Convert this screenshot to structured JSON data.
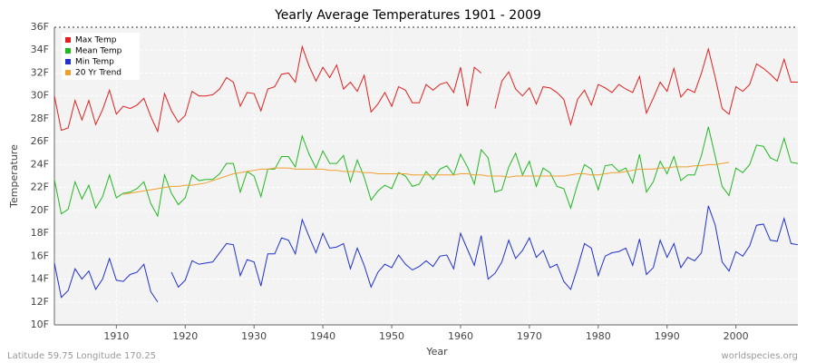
{
  "chart_data": {
    "type": "line",
    "title": "Yearly Average Temperatures 1901 - 2009",
    "x_label": "Year",
    "y_label": "Temperature",
    "footer_left": "Latitude 59.75 Longitude 170.25",
    "footer_right": "worldspecies.org",
    "legend": "top-left",
    "grid": true,
    "x": [
      1901,
      1902,
      1903,
      1904,
      1905,
      1906,
      1907,
      1908,
      1909,
      1910,
      1911,
      1912,
      1913,
      1914,
      1915,
      1916,
      1917,
      1918,
      1919,
      1920,
      1921,
      1922,
      1923,
      1924,
      1925,
      1926,
      1927,
      1928,
      1929,
      1930,
      1931,
      1932,
      1933,
      1934,
      1935,
      1936,
      1937,
      1938,
      1939,
      1940,
      1941,
      1942,
      1943,
      1944,
      1945,
      1946,
      1947,
      1948,
      1949,
      1950,
      1951,
      1952,
      1953,
      1954,
      1955,
      1956,
      1957,
      1958,
      1959,
      1960,
      1961,
      1962,
      1963,
      1964,
      1965,
      1966,
      1967,
      1968,
      1969,
      1970,
      1971,
      1972,
      1973,
      1974,
      1975,
      1976,
      1977,
      1978,
      1979,
      1980,
      1981,
      1982,
      1983,
      1984,
      1985,
      1986,
      1987,
      1988,
      1989,
      1990,
      1991,
      1992,
      1993,
      1994,
      1995,
      1996,
      1997,
      1998,
      1999,
      2000,
      2001,
      2002,
      2003,
      2004,
      2005,
      2006,
      2007,
      2008,
      2009
    ],
    "xlim": [
      1901,
      2009
    ],
    "xticks": [
      1910,
      1920,
      1930,
      1940,
      1950,
      1960,
      1970,
      1980,
      1990,
      2000
    ],
    "ylim": [
      10,
      36
    ],
    "yticks": [
      {
        "value": 10,
        "label": "10F"
      },
      {
        "value": 12,
        "label": "12F"
      },
      {
        "value": 14,
        "label": "14F"
      },
      {
        "value": 16,
        "label": "16F"
      },
      {
        "value": 18,
        "label": "18F"
      },
      {
        "value": 20,
        "label": "20F"
      },
      {
        "value": 22,
        "label": "22F"
      },
      {
        "value": 24,
        "label": "24F"
      },
      {
        "value": 26,
        "label": "26F"
      },
      {
        "value": 28,
        "label": "28F"
      },
      {
        "value": 30,
        "label": "30F"
      },
      {
        "value": 32,
        "label": "32F"
      },
      {
        "value": 34,
        "label": "34F"
      },
      {
        "value": 36,
        "label": "36F"
      }
    ],
    "series": [
      {
        "name": "Max Temp",
        "color": "#e02020",
        "values": [
          30.0,
          27.0,
          27.2,
          29.6,
          27.9,
          29.6,
          27.5,
          28.8,
          30.5,
          28.4,
          29.1,
          28.9,
          29.2,
          29.8,
          28.2,
          26.9,
          30.2,
          28.7,
          27.7,
          28.3,
          30.4,
          30.0,
          30.0,
          30.1,
          30.6,
          31.6,
          31.2,
          29.1,
          30.3,
          30.2,
          28.7,
          30.6,
          30.8,
          31.9,
          32.0,
          31.2,
          34.3,
          32.6,
          31.3,
          32.5,
          31.6,
          32.7,
          30.6,
          31.2,
          30.4,
          31.8,
          28.6,
          29.3,
          30.3,
          29.1,
          30.8,
          30.5,
          29.4,
          29.4,
          31.0,
          30.5,
          31.0,
          31.2,
          30.3,
          32.5,
          29.1,
          32.5,
          32.0,
          null,
          28.9,
          31.3,
          32.1,
          30.6,
          30.0,
          30.7,
          29.3,
          30.8,
          30.7,
          30.3,
          29.7,
          27.5,
          29.7,
          30.5,
          29.2,
          31.0,
          30.7,
          30.3,
          31.0,
          30.6,
          30.3,
          31.7,
          28.5,
          29.8,
          31.2,
          30.4,
          32.4,
          29.9,
          30.6,
          30.3,
          32.0,
          34.1,
          31.6,
          28.9,
          28.4,
          30.8,
          30.4,
          31.0,
          32.8,
          32.4,
          31.9,
          31.3,
          33.2,
          31.2,
          31.2
        ]
      },
      {
        "name": "Mean Temp",
        "color": "#22b822",
        "values": [
          22.7,
          19.7,
          20.1,
          22.5,
          21.0,
          22.2,
          20.2,
          21.2,
          23.1,
          21.1,
          21.5,
          21.6,
          21.9,
          22.5,
          20.6,
          19.5,
          23.1,
          21.5,
          20.5,
          21.1,
          23.1,
          22.6,
          22.7,
          22.7,
          23.2,
          24.1,
          24.1,
          21.6,
          23.4,
          23.0,
          21.2,
          23.6,
          23.6,
          24.7,
          24.7,
          23.8,
          26.5,
          24.9,
          23.7,
          25.2,
          24.1,
          24.1,
          24.8,
          22.5,
          24.4,
          22.9,
          20.9,
          21.7,
          22.2,
          21.9,
          23.3,
          23.0,
          22.1,
          22.3,
          23.4,
          22.7,
          23.6,
          23.9,
          23.1,
          24.9,
          23.8,
          22.3,
          25.3,
          24.6,
          21.6,
          21.8,
          23.8,
          25.0,
          23.1,
          24.3,
          22.1,
          23.7,
          23.3,
          22.1,
          21.9,
          20.2,
          22.3,
          24.0,
          23.6,
          21.8,
          23.9,
          24.0,
          23.4,
          23.7,
          22.4,
          24.9,
          21.6,
          22.5,
          24.3,
          23.2,
          24.7,
          22.6,
          23.1,
          23.1,
          24.8,
          27.3,
          24.7,
          22.1,
          21.3,
          23.7,
          23.3,
          24.0,
          25.7,
          25.6,
          24.6,
          24.3,
          26.3,
          24.2,
          24.1
        ]
      },
      {
        "name": "Min Temp",
        "color": "#2030d0",
        "values": [
          15.4,
          12.4,
          13.0,
          14.9,
          14.0,
          14.7,
          13.1,
          14.0,
          15.8,
          13.9,
          13.8,
          14.4,
          14.6,
          15.3,
          12.9,
          12.0,
          null,
          14.6,
          13.3,
          13.9,
          15.6,
          15.3,
          15.4,
          15.5,
          16.3,
          17.1,
          17.0,
          14.3,
          15.7,
          15.5,
          13.4,
          16.2,
          16.2,
          17.6,
          17.4,
          16.2,
          19.2,
          17.7,
          16.3,
          18.0,
          16.7,
          16.8,
          17.1,
          14.9,
          16.7,
          15.2,
          13.3,
          14.6,
          15.3,
          15.0,
          16.1,
          15.3,
          14.8,
          15.1,
          15.6,
          15.1,
          16.0,
          16.1,
          14.9,
          18.0,
          16.6,
          15.2,
          17.8,
          14.0,
          14.5,
          15.5,
          17.4,
          15.8,
          16.5,
          17.6,
          15.9,
          16.5,
          15.0,
          15.3,
          13.8,
          13.1,
          15.0,
          17.1,
          16.7,
          14.3,
          16.0,
          16.3,
          16.4,
          16.7,
          15.2,
          17.5,
          14.4,
          15.0,
          17.4,
          15.9,
          17.1,
          15.0,
          15.9,
          15.6,
          16.3,
          20.4,
          18.7,
          15.5,
          14.7,
          16.4,
          16.0,
          16.9,
          18.7,
          18.8,
          17.4,
          17.3,
          19.3,
          17.1,
          17.0
        ]
      },
      {
        "name": "20 Yr Trend",
        "color": "#f0a030",
        "values": [
          null,
          null,
          null,
          null,
          null,
          null,
          null,
          null,
          null,
          null,
          21.4,
          21.5,
          21.6,
          21.7,
          21.8,
          21.9,
          22.0,
          22.1,
          22.1,
          22.2,
          22.2,
          22.3,
          22.4,
          22.6,
          22.8,
          23.0,
          23.2,
          23.3,
          23.4,
          23.5,
          23.6,
          23.6,
          23.7,
          23.7,
          23.7,
          23.6,
          23.6,
          23.6,
          23.6,
          23.6,
          23.5,
          23.5,
          23.4,
          23.4,
          23.4,
          23.3,
          23.3,
          23.2,
          23.2,
          23.2,
          23.2,
          23.2,
          23.1,
          23.1,
          23.1,
          23.1,
          23.1,
          23.1,
          23.1,
          23.2,
          23.2,
          23.1,
          23.1,
          23.0,
          23.0,
          23.0,
          22.9,
          23.0,
          23.0,
          23.0,
          23.0,
          23.0,
          23.0,
          23.0,
          23.0,
          23.1,
          23.2,
          23.2,
          23.1,
          23.1,
          23.2,
          23.3,
          23.3,
          23.4,
          23.5,
          23.6,
          23.6,
          23.6,
          23.7,
          23.7,
          23.8,
          23.8,
          23.8,
          23.9,
          23.9,
          24.0,
          24.0,
          24.1,
          24.2,
          null,
          null,
          null,
          null,
          null,
          null,
          null,
          null,
          null,
          null
        ]
      }
    ]
  }
}
